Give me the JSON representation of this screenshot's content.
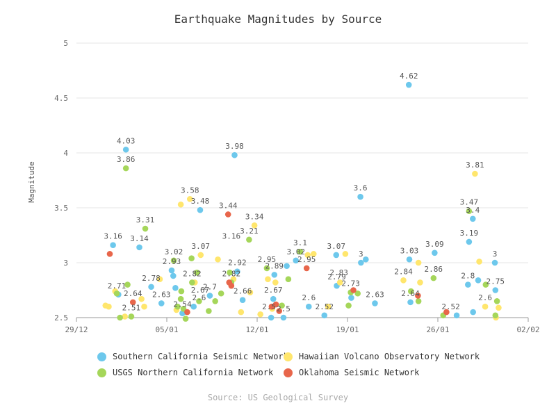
{
  "chart_data": {
    "type": "scatter",
    "title": "Earthquake Magnitudes by Source",
    "xlabel": "",
    "ylabel": "Magnitude",
    "x_ticks": [
      "29/12",
      "05/01",
      "12/01",
      "19/01",
      "26/01",
      "02/02"
    ],
    "x_range": [
      "2015-12-29",
      "2016-02-02"
    ],
    "y_ticks": [
      "2.5",
      "3",
      "3.5",
      "4",
      "4.5",
      "5"
    ],
    "ylim": [
      2.5,
      5
    ],
    "grid": true,
    "legend_position": "bottom",
    "source": "Source: US Geological Survey",
    "series": [
      {
        "name": "Southern California Seismic Network",
        "color": "#6dc8ec",
        "points": [
          {
            "x": "2015-12-31 20:00",
            "y": 3.16,
            "label": "3.16"
          },
          {
            "x": "2016-01-01 06:00",
            "y": 2.71
          },
          {
            "x": "2016-01-01 20:00",
            "y": 4.03,
            "label": "4.03"
          },
          {
            "x": "2016-01-02 21:00",
            "y": 3.14,
            "label": "3.14"
          },
          {
            "x": "2016-01-03 19:00",
            "y": 2.78
          },
          {
            "x": "2016-01-04 14:00",
            "y": 2.63
          },
          {
            "x": "2016-01-05 09:00",
            "y": 2.93
          },
          {
            "x": "2016-01-05 12:00",
            "y": 2.88
          },
          {
            "x": "2016-01-05 16:00",
            "y": 2.77
          },
          {
            "x": "2016-01-06 05:00",
            "y": 2.54
          },
          {
            "x": "2016-01-06 08:00",
            "y": 2.55
          },
          {
            "x": "2016-01-07 02:00",
            "y": 2.6
          },
          {
            "x": "2016-01-07 14:00",
            "y": 3.48
          },
          {
            "x": "2016-01-08 08:00",
            "y": 2.7
          },
          {
            "x": "2016-01-10 06:00",
            "y": 3.98,
            "label": "3.98"
          },
          {
            "x": "2016-01-10 11:00",
            "y": 2.92,
            "label": "2.92"
          },
          {
            "x": "2016-01-10 21:00",
            "y": 2.66
          },
          {
            "x": "2016-01-13 02:00",
            "y": 2.5
          },
          {
            "x": "2016-01-13 06:00",
            "y": 2.67
          },
          {
            "x": "2016-01-13 08:00",
            "y": 2.89
          },
          {
            "x": "2016-01-14 01:00",
            "y": 2.5
          },
          {
            "x": "2016-01-14 07:00",
            "y": 2.97
          },
          {
            "x": "2016-01-15 00:00",
            "y": 3.02
          },
          {
            "x": "2016-01-16 00:00",
            "y": 2.6
          },
          {
            "x": "2016-01-17 05:00",
            "y": 2.52
          },
          {
            "x": "2016-01-18 03:00",
            "y": 3.07
          },
          {
            "x": "2016-01-18 04:00",
            "y": 2.79
          },
          {
            "x": "2016-01-19 07:00",
            "y": 2.68
          },
          {
            "x": "2016-01-20 00:00",
            "y": 3.6,
            "label": "3.6"
          },
          {
            "x": "2016-01-20 01:00",
            "y": 3.0,
            "label": "3"
          },
          {
            "x": "2016-01-20 10:00",
            "y": 3.03
          },
          {
            "x": "2016-01-21 03:00",
            "y": 2.63
          },
          {
            "x": "2016-01-23 18:00",
            "y": 4.62,
            "label": "4.62"
          },
          {
            "x": "2016-01-23 19:00",
            "y": 3.03
          },
          {
            "x": "2016-01-23 21:00",
            "y": 2.64
          },
          {
            "x": "2016-01-25 18:00",
            "y": 3.09
          },
          {
            "x": "2016-01-27 11:00",
            "y": 2.52
          },
          {
            "x": "2016-01-28 08:00",
            "y": 2.8
          },
          {
            "x": "2016-01-28 10:00",
            "y": 3.19
          },
          {
            "x": "2016-01-28 17:00",
            "y": 3.4
          },
          {
            "x": "2016-01-28 17:30",
            "y": 2.55
          },
          {
            "x": "2016-01-29 03:00",
            "y": 2.84
          },
          {
            "x": "2016-01-30 10:00",
            "y": 3.0
          },
          {
            "x": "2016-01-30 11:00",
            "y": 2.75
          }
        ]
      },
      {
        "name": "Hawaiian Volcano Observatory Network",
        "color": "#ffe66d",
        "points": [
          {
            "x": "2015-12-31 06:00",
            "y": 2.61
          },
          {
            "x": "2015-12-31 12:00",
            "y": 2.6
          },
          {
            "x": "2016-01-01 00:00",
            "y": 2.74
          },
          {
            "x": "2016-01-01 18:00",
            "y": 2.51
          },
          {
            "x": "2016-01-03 01:00",
            "y": 2.67
          },
          {
            "x": "2016-01-03 06:00",
            "y": 2.6
          },
          {
            "x": "2016-01-04 11:00",
            "y": 2.85
          },
          {
            "x": "2016-01-05 18:00",
            "y": 2.57
          },
          {
            "x": "2016-01-06 02:00",
            "y": 3.53
          },
          {
            "x": "2016-01-06 19:00",
            "y": 3.58,
            "label": "3.58"
          },
          {
            "x": "2016-01-07 04:00",
            "y": 2.82
          },
          {
            "x": "2016-01-07 15:00",
            "y": 3.07
          },
          {
            "x": "2016-01-08 23:00",
            "y": 3.03
          },
          {
            "x": "2016-01-10 04:00",
            "y": 2.85
          },
          {
            "x": "2016-01-10 18:00",
            "y": 2.55
          },
          {
            "x": "2016-01-11 11:00",
            "y": 2.73
          },
          {
            "x": "2016-01-11 19:00",
            "y": 3.34
          },
          {
            "x": "2016-01-12 06:00",
            "y": 2.53
          },
          {
            "x": "2016-01-12 20:00",
            "y": 2.85
          },
          {
            "x": "2016-01-13 04:00",
            "y": 2.58
          },
          {
            "x": "2016-01-13 10:00",
            "y": 2.82
          },
          {
            "x": "2016-01-15 22:00",
            "y": 3.07
          },
          {
            "x": "2016-01-16 09:00",
            "y": 3.08
          },
          {
            "x": "2016-01-17 12:00",
            "y": 2.6
          },
          {
            "x": "2016-01-18 10:00",
            "y": 2.82
          },
          {
            "x": "2016-01-18 20:00",
            "y": 3.08
          },
          {
            "x": "2016-01-23 08:00",
            "y": 2.84
          },
          {
            "x": "2016-01-24 12:00",
            "y": 3.0
          },
          {
            "x": "2016-01-24 15:00",
            "y": 2.82
          },
          {
            "x": "2016-01-28 21:00",
            "y": 3.81,
            "label": "3.81"
          },
          {
            "x": "2016-01-29 05:00",
            "y": 3.01
          },
          {
            "x": "2016-01-29 16:00",
            "y": 2.6
          },
          {
            "x": "2016-01-30 12:00",
            "y": 2.5
          },
          {
            "x": "2016-01-30 17:00",
            "y": 2.59
          }
        ]
      },
      {
        "name": "USGS Northern California Network",
        "color": "#a5d65a",
        "points": [
          {
            "x": "2016-01-01 03:00",
            "y": 2.72
          },
          {
            "x": "2016-01-01 09:00",
            "y": 2.5
          },
          {
            "x": "2016-01-01 20:00",
            "y": 3.86,
            "label": "3.86"
          },
          {
            "x": "2016-01-01 23:00",
            "y": 2.8
          },
          {
            "x": "2016-01-02 06:00",
            "y": 2.51,
            "label": "2.51"
          },
          {
            "x": "2016-01-03 08:00",
            "y": 3.31,
            "label": "3.31"
          },
          {
            "x": "2016-01-05 13:00",
            "y": 3.02,
            "label": "3.02"
          },
          {
            "x": "2016-01-05 20:00",
            "y": 2.6
          },
          {
            "x": "2016-01-06 02:00",
            "y": 2.67
          },
          {
            "x": "2016-01-06 03:00",
            "y": 2.74
          },
          {
            "x": "2016-01-06 07:00",
            "y": 2.58
          },
          {
            "x": "2016-01-06 11:00",
            "y": 2.49
          },
          {
            "x": "2016-01-06 22:00",
            "y": 3.04
          },
          {
            "x": "2016-01-06 23:00",
            "y": 2.82,
            "label": "2.82"
          },
          {
            "x": "2016-01-07 08:00",
            "y": 2.91
          },
          {
            "x": "2016-01-07 12:00",
            "y": 2.65
          },
          {
            "x": "2016-01-08 06:00",
            "y": 2.56
          },
          {
            "x": "2016-01-08 18:00",
            "y": 2.65
          },
          {
            "x": "2016-01-09 05:00",
            "y": 2.72
          },
          {
            "x": "2016-01-09 21:00",
            "y": 2.91
          },
          {
            "x": "2016-01-10 00:00",
            "y": 2.82,
            "label": "2.82"
          },
          {
            "x": "2016-01-11 09:00",
            "y": 3.21,
            "label": "3.21"
          },
          {
            "x": "2016-01-12 18:00",
            "y": 2.95
          },
          {
            "x": "2016-01-13 22:00",
            "y": 2.61
          },
          {
            "x": "2016-01-14 10:00",
            "y": 2.85
          },
          {
            "x": "2016-01-15 08:00",
            "y": 3.1,
            "label": "3.1"
          },
          {
            "x": "2016-01-19 02:00",
            "y": 2.61
          },
          {
            "x": "2016-01-19 06:00",
            "y": 2.73,
            "label": "2.73"
          },
          {
            "x": "2016-01-19 19:00",
            "y": 2.72
          },
          {
            "x": "2016-01-23 22:00",
            "y": 2.74
          },
          {
            "x": "2016-01-24 12:00",
            "y": 2.65
          },
          {
            "x": "2016-01-25 16:00",
            "y": 2.86,
            "label": "2.86"
          },
          {
            "x": "2016-01-26 10:00",
            "y": 2.52
          },
          {
            "x": "2016-01-28 10:00",
            "y": 3.47,
            "label": "3.47"
          },
          {
            "x": "2016-01-29 17:00",
            "y": 2.8
          },
          {
            "x": "2016-01-30 11:00",
            "y": 2.52
          },
          {
            "x": "2016-01-30 14:00",
            "y": 2.65
          }
        ]
      },
      {
        "name": "Oklahoma Seismic Network",
        "color": "#e8664b",
        "points": [
          {
            "x": "2015-12-31 14:00",
            "y": 3.08
          },
          {
            "x": "2016-01-02 09:00",
            "y": 2.64,
            "label": "2.64"
          },
          {
            "x": "2016-01-06 14:00",
            "y": 2.55
          },
          {
            "x": "2016-01-09 18:00",
            "y": 3.44,
            "label": "3.44"
          },
          {
            "x": "2016-01-09 20:00",
            "y": 2.82
          },
          {
            "x": "2016-01-10 00:00",
            "y": 2.79
          },
          {
            "x": "2016-01-13 03:00",
            "y": 2.6
          },
          {
            "x": "2016-01-13 11:00",
            "y": 2.62
          },
          {
            "x": "2016-01-13 17:00",
            "y": 2.56
          },
          {
            "x": "2016-01-15 20:00",
            "y": 2.95,
            "label": "2.95"
          },
          {
            "x": "2016-01-19 11:00",
            "y": 2.75
          },
          {
            "x": "2016-01-24 11:00",
            "y": 2.7
          },
          {
            "x": "2016-01-26 16:00",
            "y": 2.55
          }
        ]
      }
    ],
    "extra_labels": [
      {
        "text": "2.93",
        "x": "2016-01-05 09:00",
        "y": 2.93
      },
      {
        "text": "2.78",
        "x": "2016-01-03 19:00",
        "y": 2.78
      },
      {
        "text": "2.71",
        "x": "2016-01-01 03:00",
        "y": 2.71
      },
      {
        "text": "2.63",
        "x": "2016-01-04 14:00",
        "y": 2.63
      },
      {
        "text": "2.54",
        "x": "2016-01-06 05:00",
        "y": 2.54
      },
      {
        "text": "2.6",
        "x": "2016-01-07 12:00",
        "y": 2.6
      },
      {
        "text": "2.67",
        "x": "2016-01-07 14:00",
        "y": 2.67
      },
      {
        "text": "2.7",
        "x": "2016-01-08 08:00",
        "y": 2.7
      },
      {
        "text": "3.07",
        "x": "2016-01-07 15:00",
        "y": 3.07
      },
      {
        "text": "3.16",
        "x": "2016-01-10 00:00",
        "y": 3.16
      },
      {
        "text": "3.48",
        "x": "2016-01-07 14:00",
        "y": 3.48
      },
      {
        "text": "3.34",
        "x": "2016-01-11 19:00",
        "y": 3.34
      },
      {
        "text": "2.66",
        "x": "2016-01-10 21:00",
        "y": 2.66
      },
      {
        "text": "2.95",
        "x": "2016-01-12 18:00",
        "y": 2.95
      },
      {
        "text": "2.89",
        "x": "2016-01-13 08:00",
        "y": 2.89
      },
      {
        "text": "2.67",
        "x": "2016-01-13 06:00",
        "y": 2.67
      },
      {
        "text": "2.5",
        "x": "2016-01-12 22:00",
        "y": 2.52
      },
      {
        "text": "2.5",
        "x": "2016-01-14 01:00",
        "y": 2.5
      },
      {
        "text": "3.02",
        "x": "2016-01-15 00:00",
        "y": 3.02
      },
      {
        "text": "2.6",
        "x": "2016-01-16 00:00",
        "y": 2.6
      },
      {
        "text": "2.52",
        "x": "2016-01-17 05:00",
        "y": 2.52
      },
      {
        "text": "3.07",
        "x": "2016-01-18 03:00",
        "y": 3.07
      },
      {
        "text": "2.79",
        "x": "2016-01-18 04:00",
        "y": 2.79
      },
      {
        "text": "2.83",
        "x": "2016-01-18 08:00",
        "y": 2.83
      },
      {
        "text": "2.63",
        "x": "2016-01-21 03:00",
        "y": 2.63
      },
      {
        "text": "3.03",
        "x": "2016-01-23 19:00",
        "y": 3.03
      },
      {
        "text": "2.84",
        "x": "2016-01-23 08:00",
        "y": 2.84
      },
      {
        "text": "2.64",
        "x": "2016-01-23 21:00",
        "y": 2.64
      },
      {
        "text": "3.09",
        "x": "2016-01-25 18:00",
        "y": 3.09
      },
      {
        "text": "2.52",
        "x": "2016-01-27 00:00",
        "y": 2.52
      },
      {
        "text": "3.4",
        "x": "2016-01-28 17:00",
        "y": 3.4
      },
      {
        "text": "3.19",
        "x": "2016-01-28 10:00",
        "y": 3.19
      },
      {
        "text": "2.8",
        "x": "2016-01-28 08:00",
        "y": 2.8
      },
      {
        "text": "3",
        "x": "2016-01-30 10:00",
        "y": 3.0
      },
      {
        "text": "2.75",
        "x": "2016-01-30 11:00",
        "y": 2.75
      },
      {
        "text": "2.6",
        "x": "2016-01-29 16:00",
        "y": 2.6
      }
    ]
  }
}
